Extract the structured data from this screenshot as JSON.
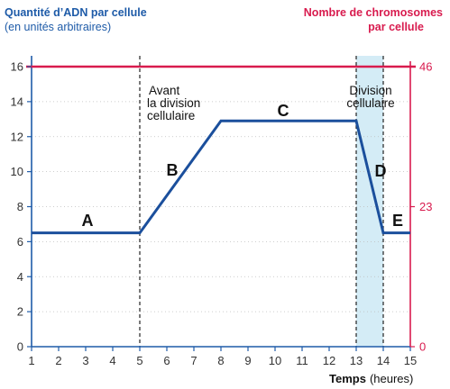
{
  "chart_data": {
    "type": "line",
    "ylabel": [
      "Quantité d’ADN par cellule",
      "(en unités arbitraires)"
    ],
    "y2label": [
      "Nombre de chromosomes",
      "par cellule"
    ],
    "xlabel": {
      "main": "Temps",
      "unit": "(heures)"
    },
    "xlim": [
      1,
      15
    ],
    "ylim": [
      0,
      16
    ],
    "y2lim": [
      0,
      46
    ],
    "xticks": [
      1,
      2,
      3,
      4,
      5,
      6,
      7,
      8,
      9,
      10,
      11,
      12,
      13,
      14,
      15
    ],
    "yticks": [
      0,
      2,
      4,
      6,
      8,
      10,
      12,
      14,
      16
    ],
    "y2ticks": [
      0,
      23,
      46
    ],
    "grid": true,
    "series": [
      {
        "axis": "left",
        "x": [
          1,
          5,
          8,
          13,
          14,
          15
        ],
        "values": [
          6.5,
          6.5,
          12.9,
          12.9,
          6.5,
          6.5
        ],
        "color": "#1b4f9c"
      },
      {
        "axis": "right",
        "x": [
          1,
          15
        ],
        "values": [
          46,
          46
        ],
        "color": "#d81b4e"
      }
    ],
    "reference_lines_x": [
      5,
      13,
      14
    ],
    "shaded_region_x": [
      13,
      14
    ],
    "phase_labels": [
      "A",
      "B",
      "C",
      "D",
      "E"
    ],
    "annotations": [
      {
        "lines": [
          "Avant",
          "la division",
          "cellulaire"
        ]
      },
      {
        "lines": [
          "Division",
          "cellulaire"
        ]
      }
    ]
  },
  "colors": {
    "left_axis": "#1e5ba8",
    "right_axis": "#d81b4e",
    "shade": "#d4ecf6",
    "reference_line": "#222222",
    "grid": "#bdbdbd"
  }
}
